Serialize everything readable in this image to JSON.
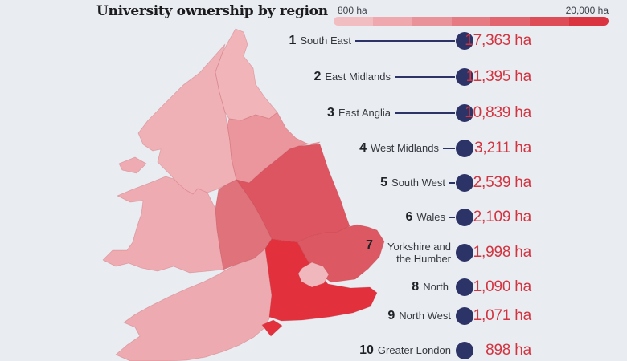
{
  "title": "University ownership by region",
  "legend": {
    "min_label": "800 ha",
    "max_label": "20,000 ha",
    "colors": [
      "#f2bdc1",
      "#efa8ae",
      "#ea929a",
      "#e67b84",
      "#e2646e",
      "#de4c58",
      "#da3440"
    ]
  },
  "colors": {
    "background": "#e9edf2",
    "dot": "#2c3367",
    "leader_line": "#2c3367",
    "value_text": "#d23440",
    "rank_text": "#1f2226",
    "name_text": "#35393f",
    "title_text": "#1c1c1e"
  },
  "chart_data": {
    "type": "heatmap",
    "subtype": "choropleth map of England and Wales with ranked lollipop list",
    "title": "University ownership by region",
    "unit": "ha",
    "scale": {
      "min": 800,
      "max": 20000,
      "min_label": "800 ha",
      "max_label": "20,000 ha"
    },
    "legend_position": "top-right",
    "regions": [
      {
        "rank": 1,
        "name": "South East",
        "value": 17363,
        "label": "17,363 ha"
      },
      {
        "rank": 2,
        "name": "East Midlands",
        "value": 11395,
        "label": "11,395 ha"
      },
      {
        "rank": 3,
        "name": "East Anglia",
        "value": 10839,
        "label": "10,839 ha"
      },
      {
        "rank": 4,
        "name": "West Midlands",
        "value": 3211,
        "label": "3,211 ha"
      },
      {
        "rank": 5,
        "name": "South West",
        "value": 2539,
        "label": "2,539 ha"
      },
      {
        "rank": 6,
        "name": "Wales",
        "value": 2109,
        "label": "2,109 ha"
      },
      {
        "rank": 7,
        "name": "Yorkshire and the Humber",
        "value": 1998,
        "label": "1,998 ha"
      },
      {
        "rank": 8,
        "name": "North",
        "value": 1090,
        "label": "1,090 ha"
      },
      {
        "rank": 9,
        "name": "North West",
        "value": 1071,
        "label": "1,071 ha"
      },
      {
        "rank": 10,
        "name": "Greater London",
        "value": 898,
        "label": "898 ha"
      }
    ]
  },
  "map": {
    "regions": [
      {
        "id": "north",
        "name": "North",
        "color": "#f0b4b9"
      },
      {
        "id": "north_west",
        "name": "North West",
        "color": "#efb0b6"
      },
      {
        "id": "yorkshire",
        "name": "Yorkshire and the Humber",
        "color": "#eb959d"
      },
      {
        "id": "east_midlands",
        "name": "East Midlands",
        "color": "#dc5560"
      },
      {
        "id": "east_anglia",
        "name": "East Anglia",
        "color": "#dc5863"
      },
      {
        "id": "west_midlands",
        "name": "West Midlands",
        "color": "#e0727c"
      },
      {
        "id": "wales",
        "name": "Wales",
        "color": "#eeabb1"
      },
      {
        "id": "anglesey",
        "name": "Wales (Anglesey)",
        "color": "#eeabb1"
      },
      {
        "id": "south_west",
        "name": "South West",
        "color": "#edaab0"
      },
      {
        "id": "south_east",
        "name": "South East",
        "color": "#e2303d"
      },
      {
        "id": "isle_of_wight",
        "name": "South East (Isle of Wight)",
        "color": "#e2303d"
      },
      {
        "id": "greater_london",
        "name": "Greater London",
        "color": "#f0b8bc"
      }
    ]
  }
}
